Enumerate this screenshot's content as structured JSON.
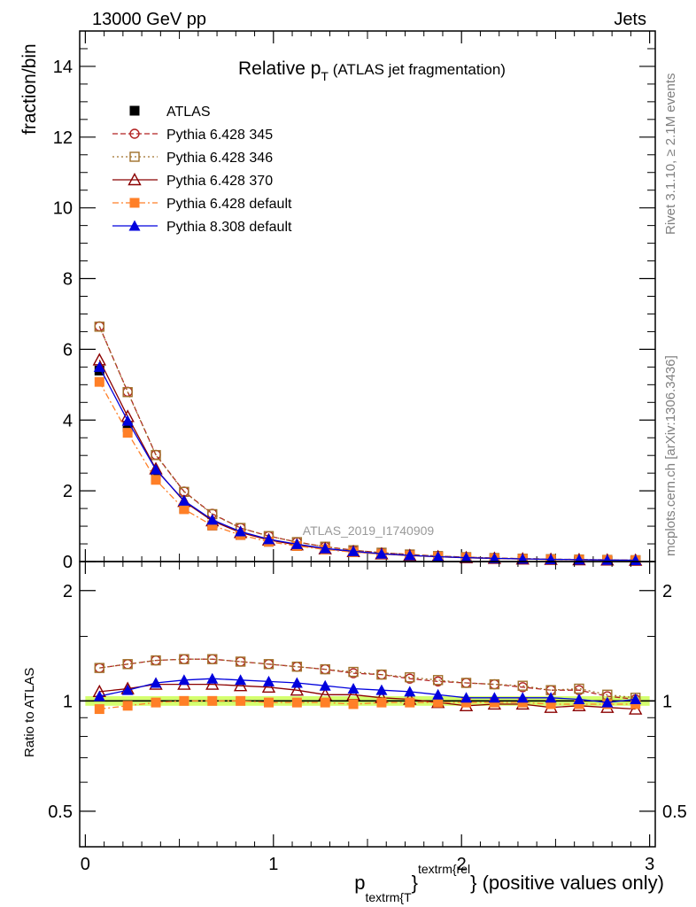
{
  "header": {
    "energy_label": "13000 GeV pp",
    "process_label": "Jets",
    "title_main": "Relative p",
    "title_sub": "T",
    "title_rest": " (ATLAS jet fragmentation)",
    "side_label_top": "Rivet 3.1.10, ≥ 2.1M events",
    "side_label_bottom": "mcplots.cern.ch [arXiv:1306.3436]",
    "watermark": "ATLAS_2019_I1740909"
  },
  "axes": {
    "main_ylabel": "fraction/bin",
    "ratio_ylabel": "Ratio to ATLAS",
    "xlabel_p": "p",
    "xlabel_sub": "textrm{T",
    "xlabel_brace": "}",
    "xlabel_sup": "textrm{rel",
    "xlabel_rest": "} (positive values only)"
  },
  "legend": [
    {
      "name": "ATLAS",
      "color": "#000000",
      "marker": "square-filled",
      "dash": "none"
    },
    {
      "name": "Pythia 6.428 345",
      "color": "#b22222",
      "marker": "circle-open",
      "dash": "dashed"
    },
    {
      "name": "Pythia 6.428 346",
      "color": "#a0702a",
      "marker": "square-open",
      "dash": "dotted"
    },
    {
      "name": "Pythia 6.428 370",
      "color": "#8b0000",
      "marker": "triangle-open",
      "dash": "solid"
    },
    {
      "name": "Pythia 6.428 default",
      "color": "#ff7f27",
      "marker": "square-filled",
      "dash": "dashdot"
    },
    {
      "name": "Pythia 8.308 default",
      "color": "#0000dd",
      "marker": "triangle-filled",
      "dash": "solid"
    }
  ],
  "chart_data": [
    {
      "type": "line",
      "panel": "main",
      "xlim": [
        -0.03,
        3.03
      ],
      "ylim": [
        0,
        15
      ],
      "x_ticks": [
        0,
        1,
        2,
        3
      ],
      "y_ticks": [
        0,
        2,
        4,
        6,
        8,
        10,
        12,
        14
      ],
      "x": [
        0.075,
        0.225,
        0.375,
        0.525,
        0.675,
        0.825,
        0.975,
        1.125,
        1.275,
        1.425,
        1.575,
        1.725,
        1.875,
        2.025,
        2.175,
        2.325,
        2.475,
        2.625,
        2.775,
        2.925
      ],
      "series": [
        {
          "name": "ATLAS",
          "values": [
            5.4,
            3.8,
            2.35,
            1.5,
            1.02,
            0.75,
            0.56,
            0.44,
            0.34,
            0.27,
            0.21,
            0.17,
            0.135,
            0.11,
            0.09,
            0.075,
            0.062,
            0.052,
            0.044,
            0.037
          ]
        },
        {
          "name": "Pythia 6.428 345",
          "values": [
            6.65,
            4.8,
            3.02,
            1.98,
            1.35,
            0.95,
            0.72,
            0.55,
            0.42,
            0.32,
            0.25,
            0.2,
            0.155,
            0.124,
            0.1,
            0.082,
            0.068,
            0.057,
            0.047,
            0.039
          ]
        },
        {
          "name": "Pythia 6.428 346",
          "values": [
            6.64,
            4.79,
            3.01,
            1.97,
            1.34,
            0.95,
            0.72,
            0.55,
            0.42,
            0.32,
            0.25,
            0.2,
            0.155,
            0.124,
            0.1,
            0.082,
            0.068,
            0.057,
            0.047,
            0.039
          ]
        },
        {
          "name": "Pythia 6.428 370",
          "values": [
            5.7,
            4.1,
            2.62,
            1.7,
            1.15,
            0.82,
            0.61,
            0.47,
            0.36,
            0.28,
            0.215,
            0.17,
            0.135,
            0.108,
            0.088,
            0.072,
            0.06,
            0.05,
            0.042,
            0.035
          ]
        },
        {
          "name": "Pythia 6.428 default",
          "values": [
            5.08,
            3.64,
            2.31,
            1.48,
            1.02,
            0.75,
            0.56,
            0.44,
            0.34,
            0.265,
            0.21,
            0.17,
            0.134,
            0.108,
            0.088,
            0.073,
            0.06,
            0.051,
            0.043,
            0.036
          ]
        },
        {
          "name": "Pythia 8.308 default",
          "values": [
            5.5,
            3.98,
            2.6,
            1.72,
            1.18,
            0.85,
            0.63,
            0.49,
            0.37,
            0.29,
            0.22,
            0.176,
            0.138,
            0.11,
            0.09,
            0.075,
            0.062,
            0.052,
            0.043,
            0.037
          ]
        }
      ]
    },
    {
      "type": "line",
      "panel": "ratio",
      "xlim": [
        -0.03,
        3.03
      ],
      "ylim": [
        0.4,
        2.4
      ],
      "y_scale": "log",
      "x_ticks": [
        0,
        1,
        2,
        3
      ],
      "y_ticks": [
        0.5,
        1,
        2
      ],
      "band": {
        "center": 1.0,
        "half_width": 0.03,
        "color": "#ccff55"
      },
      "x": [
        0.075,
        0.225,
        0.375,
        0.525,
        0.675,
        0.825,
        0.975,
        1.125,
        1.275,
        1.425,
        1.575,
        1.725,
        1.875,
        2.025,
        2.175,
        2.325,
        2.475,
        2.625,
        2.775,
        2.925
      ],
      "series": [
        {
          "name": "Pythia 6.428 345",
          "values": [
            1.23,
            1.26,
            1.29,
            1.3,
            1.3,
            1.28,
            1.26,
            1.24,
            1.22,
            1.19,
            1.18,
            1.15,
            1.13,
            1.12,
            1.11,
            1.09,
            1.07,
            1.07,
            1.03,
            1.01
          ]
        },
        {
          "name": "Pythia 6.428 346",
          "values": [
            1.23,
            1.26,
            1.29,
            1.3,
            1.3,
            1.28,
            1.26,
            1.24,
            1.22,
            1.2,
            1.18,
            1.16,
            1.14,
            1.12,
            1.11,
            1.1,
            1.07,
            1.08,
            1.04,
            1.02
          ]
        },
        {
          "name": "Pythia 6.428 370",
          "values": [
            1.06,
            1.08,
            1.11,
            1.11,
            1.11,
            1.1,
            1.09,
            1.07,
            1.04,
            1.04,
            1.02,
            1.01,
            0.99,
            0.97,
            0.98,
            0.98,
            0.96,
            0.97,
            0.96,
            0.95
          ]
        },
        {
          "name": "Pythia 6.428 default",
          "values": [
            0.95,
            0.97,
            0.99,
            1.0,
            1.0,
            1.0,
            0.99,
            0.99,
            0.99,
            0.98,
            0.99,
            0.99,
            0.99,
            0.99,
            0.99,
            0.99,
            0.98,
            0.98,
            0.98,
            0.98
          ]
        },
        {
          "name": "Pythia 8.308 default",
          "values": [
            1.03,
            1.07,
            1.12,
            1.14,
            1.15,
            1.14,
            1.13,
            1.12,
            1.1,
            1.08,
            1.07,
            1.06,
            1.04,
            1.02,
            1.02,
            1.02,
            1.02,
            1.01,
            0.99,
            1.01
          ]
        }
      ]
    }
  ]
}
